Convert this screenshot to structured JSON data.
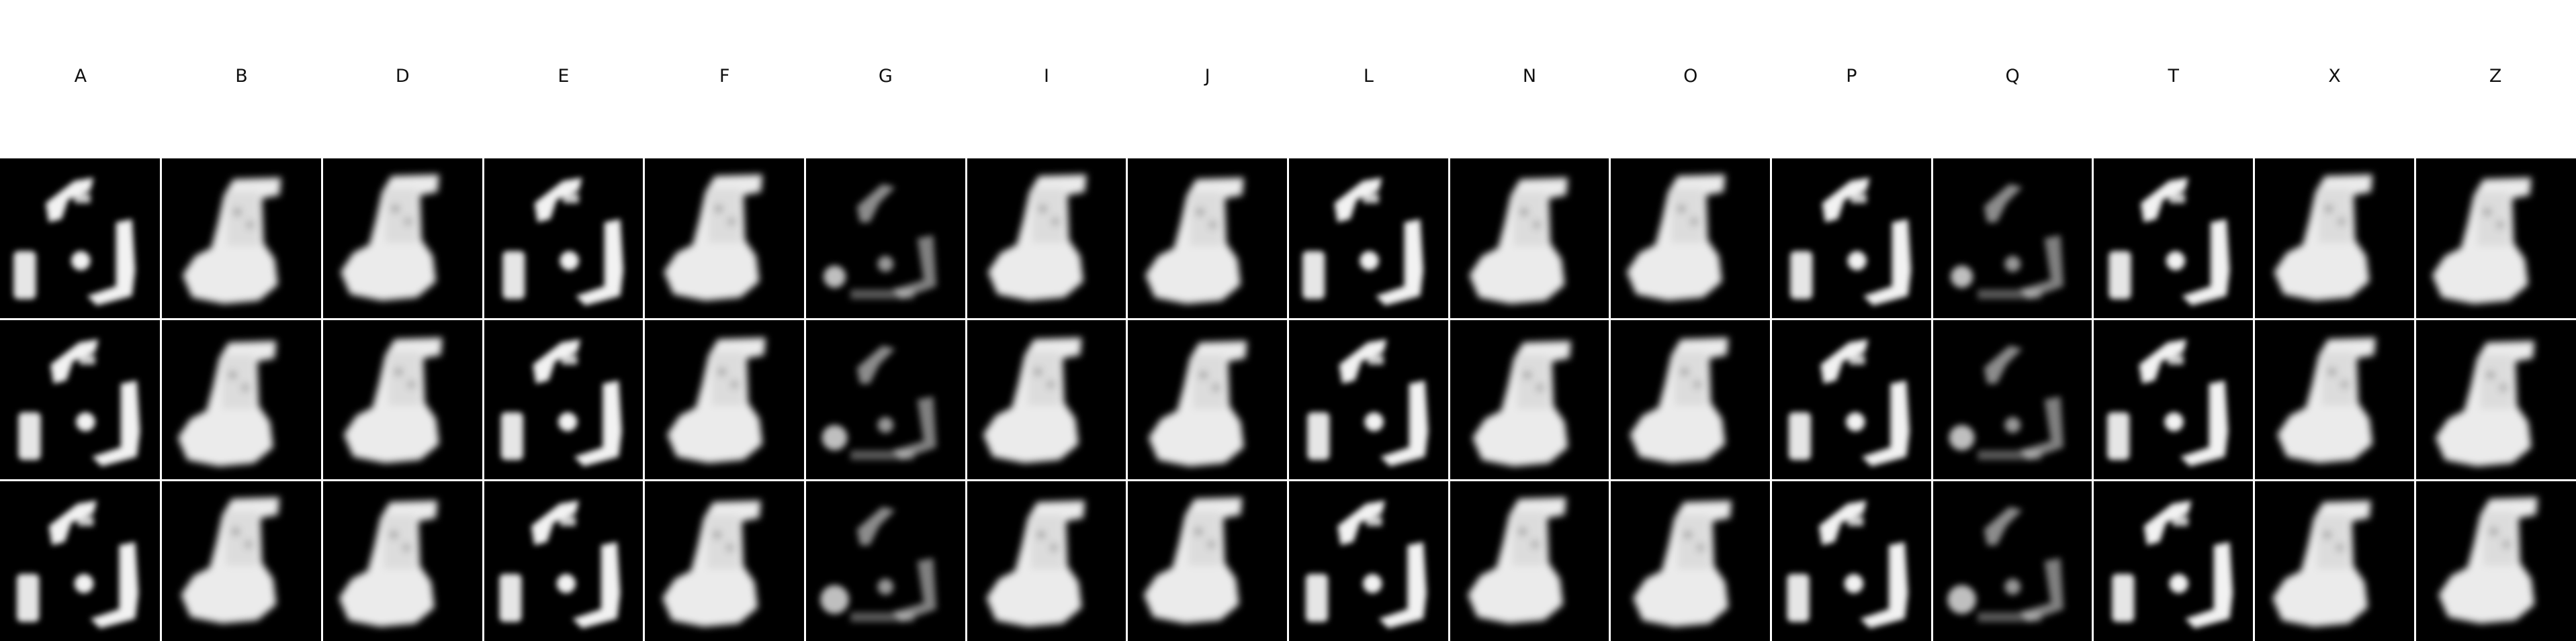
{
  "columns": [
    "A",
    "B",
    "D",
    "E",
    "F",
    "G",
    "I",
    "J",
    "L",
    "N",
    "O",
    "P",
    "Q",
    "T",
    "X",
    "Z"
  ],
  "rows": 3,
  "column_shapes": [
    "glyph",
    "boot",
    "boot",
    "glyph",
    "boot",
    "sparse",
    "boot",
    "boot",
    "glyph",
    "boot",
    "boot",
    "glyph",
    "sparse",
    "glyph",
    "boot",
    "boot"
  ],
  "colors": {
    "background": "#ffffff",
    "cell": "#000000",
    "ink": "#ffffff"
  }
}
